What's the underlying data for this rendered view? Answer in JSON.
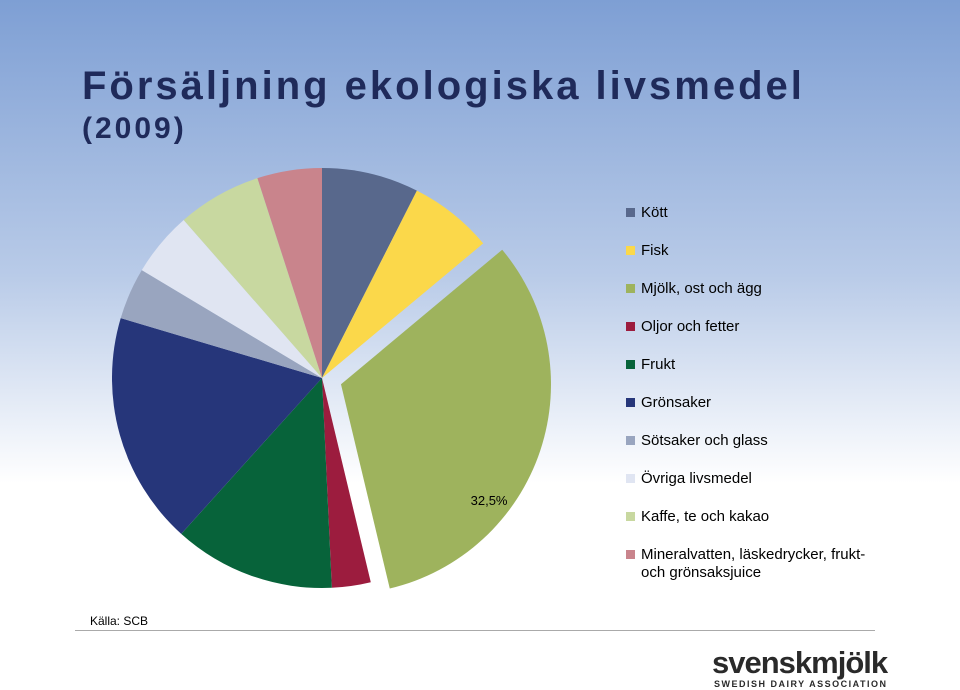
{
  "chart_data": {
    "type": "pie",
    "title": "Försäljning ekologiska livsmedel",
    "subtitle": "(2009)",
    "categories": [
      "Kött",
      "Fisk",
      "Mjölk, ost och ägg",
      "Oljor och fetter",
      "Frukt",
      "Grönsaker",
      "Sötsaker och glass",
      "Övriga livsmedel",
      "Kaffe, te och kakao",
      "Mineralvatten, läskedrycker, frukt- och grönsaksjuice"
    ],
    "values": [
      7.5,
      6.5,
      32.5,
      3,
      12.5,
      18,
      4,
      5,
      6.5,
      5
    ],
    "value_labels": [
      null,
      null,
      "32,5%",
      null,
      null,
      null,
      null,
      null,
      null,
      null
    ],
    "colors": [
      "#58688c",
      "#fbd84a",
      "#9eb35d",
      "#9c1c3e",
      "#07633a",
      "#26367a",
      "#99a5bf",
      "#e0e5f2",
      "#c8d8a0",
      "#c9848c"
    ],
    "source": "Källa: SCB",
    "logo": "svenskmjölk",
    "logo_sub": "SWEDISH DAIRY ASSOCIATION"
  }
}
